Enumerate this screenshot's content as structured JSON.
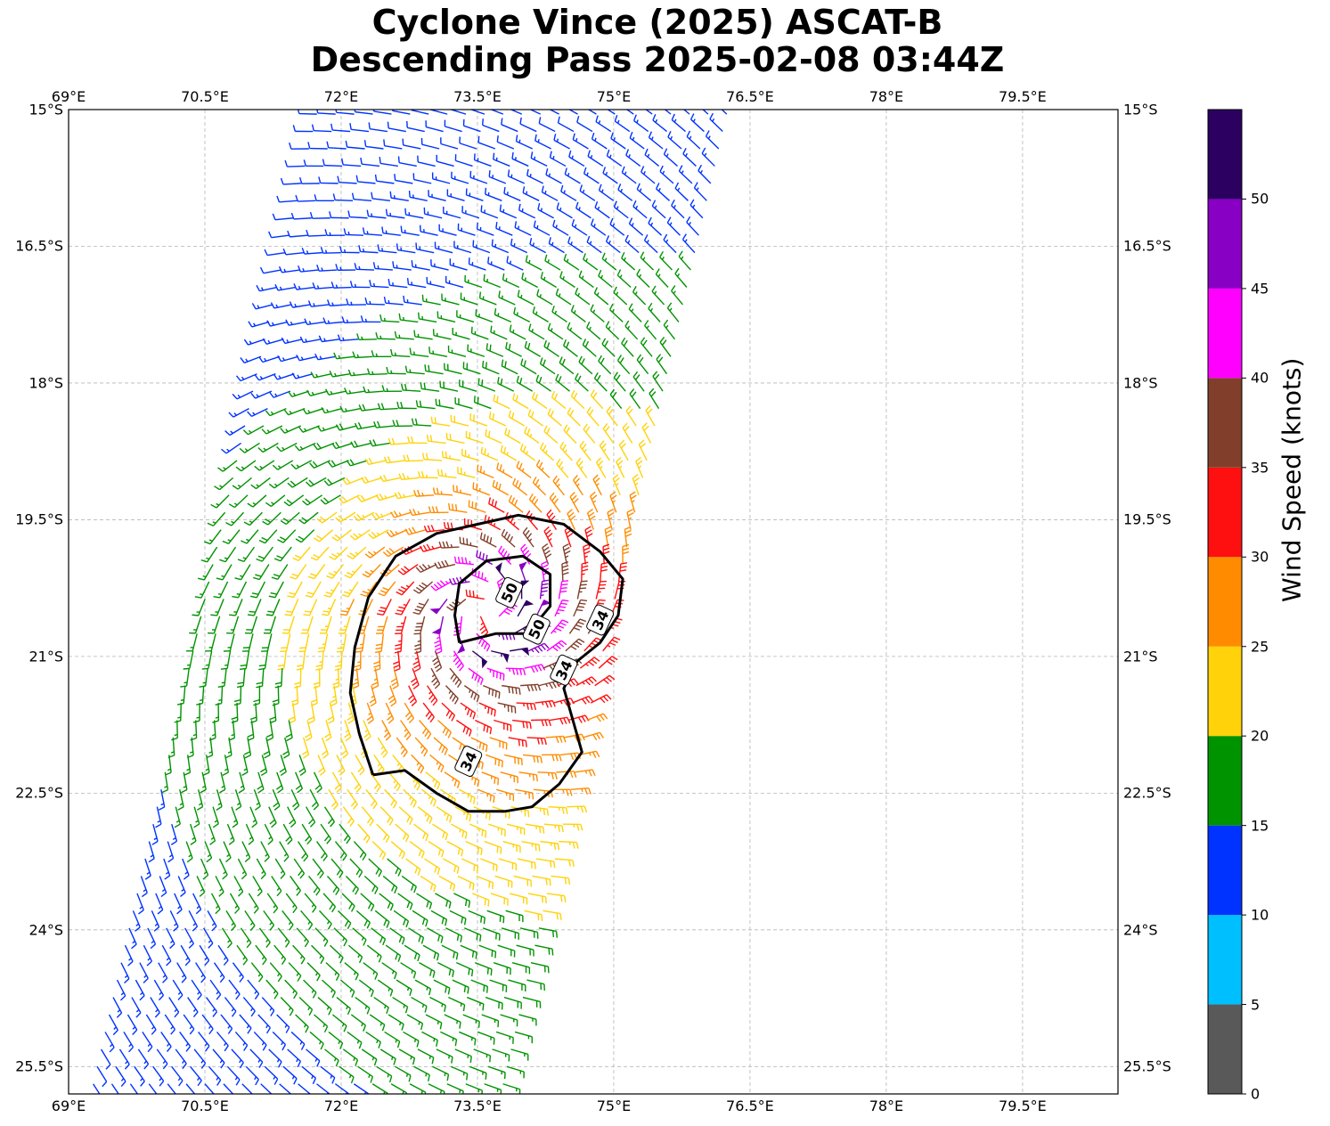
{
  "title": {
    "line1": "Cyclone Vince (2025) ASCAT-B",
    "line2": "Descending Pass 2025-02-08 03:44Z"
  },
  "map": {
    "lon_range": [
      69,
      80.55
    ],
    "lat_range": [
      -25.8,
      -15
    ],
    "lon_ticks": [
      {
        "value": 69,
        "label": "69°E"
      },
      {
        "value": 70.5,
        "label": "70.5°E"
      },
      {
        "value": 72,
        "label": "72°E"
      },
      {
        "value": 73.5,
        "label": "73.5°E"
      },
      {
        "value": 75,
        "label": "75°E"
      },
      {
        "value": 76.5,
        "label": "76.5°E"
      },
      {
        "value": 78,
        "label": "78°E"
      },
      {
        "value": 79.5,
        "label": "79.5°E"
      }
    ],
    "lat_ticks": [
      {
        "value": -15,
        "label": "15°S"
      },
      {
        "value": -16.5,
        "label": "16.5°S"
      },
      {
        "value": -18,
        "label": "18°S"
      },
      {
        "value": -19.5,
        "label": "19.5°S"
      },
      {
        "value": -21,
        "label": "21°S"
      },
      {
        "value": -22.5,
        "label": "22.5°S"
      },
      {
        "value": -24,
        "label": "24°S"
      },
      {
        "value": -25.5,
        "label": "25.5°S"
      }
    ],
    "gridlines": true,
    "storm_center": {
      "lon": 73.6,
      "lat": -20.5
    },
    "swath": {
      "center_track_top": {
        "lon": 74.0,
        "lat": -15.0
      },
      "center_track_bottom": {
        "lon": 71.5,
        "lat": -25.8
      },
      "half_width_deg": 2.35
    },
    "contours": [
      {
        "level": 34,
        "label": "34",
        "points": [
          [
            72.35,
            -22.3
          ],
          [
            72.7,
            -22.25
          ],
          [
            73.05,
            -22.5
          ],
          [
            73.4,
            -22.7
          ],
          [
            73.8,
            -22.7
          ],
          [
            74.1,
            -22.65
          ],
          [
            74.4,
            -22.4
          ],
          [
            74.65,
            -22.05
          ],
          [
            74.55,
            -21.7
          ],
          [
            74.45,
            -21.35
          ],
          [
            74.6,
            -21.05
          ],
          [
            74.85,
            -20.85
          ],
          [
            75.05,
            -20.55
          ],
          [
            75.1,
            -20.15
          ],
          [
            74.85,
            -19.85
          ],
          [
            74.45,
            -19.55
          ],
          [
            73.95,
            -19.45
          ],
          [
            73.5,
            -19.55
          ],
          [
            73.05,
            -19.65
          ],
          [
            72.6,
            -19.9
          ],
          [
            72.3,
            -20.35
          ],
          [
            72.15,
            -20.9
          ],
          [
            72.1,
            -21.4
          ],
          [
            72.2,
            -21.85
          ],
          [
            72.35,
            -22.3
          ]
        ]
      },
      {
        "level": 50,
        "label": "50",
        "points": [
          [
            73.3,
            -20.85
          ],
          [
            73.7,
            -20.75
          ],
          [
            74.05,
            -20.75
          ],
          [
            74.3,
            -20.45
          ],
          [
            74.3,
            -20.1
          ],
          [
            74.0,
            -19.9
          ],
          [
            73.6,
            -19.95
          ],
          [
            73.3,
            -20.2
          ],
          [
            73.25,
            -20.55
          ],
          [
            73.3,
            -20.85
          ]
        ]
      }
    ],
    "contour_labels": [
      {
        "text": "34",
        "lon": 73.4,
        "lat": -22.15
      },
      {
        "text": "34",
        "lon": 74.45,
        "lat": -21.15
      },
      {
        "text": "34",
        "lon": 74.85,
        "lat": -20.6
      },
      {
        "text": "50",
        "lon": 73.85,
        "lat": -20.3
      },
      {
        "text": "50",
        "lon": 74.15,
        "lat": -20.7
      }
    ]
  },
  "colorbar": {
    "label": "Wind Speed (knots)",
    "bins": [
      {
        "min": 0,
        "max": 5,
        "color": "#595959"
      },
      {
        "min": 5,
        "max": 10,
        "color": "#00bfff"
      },
      {
        "min": 10,
        "max": 15,
        "color": "#0033ff"
      },
      {
        "min": 15,
        "max": 20,
        "color": "#009300"
      },
      {
        "min": 20,
        "max": 25,
        "color": "#ffd20a"
      },
      {
        "min": 25,
        "max": 30,
        "color": "#ff8c00"
      },
      {
        "min": 30,
        "max": 35,
        "color": "#ff1010"
      },
      {
        "min": 35,
        "max": 40,
        "color": "#813f2b"
      },
      {
        "min": 40,
        "max": 45,
        "color": "#ff00ff"
      },
      {
        "min": 45,
        "max": 50,
        "color": "#8800c4"
      },
      {
        "min": 50,
        "max": 55,
        "color": "#2c0060"
      }
    ],
    "ticks": [
      "0",
      "5",
      "10",
      "15",
      "20",
      "25",
      "30",
      "35",
      "40",
      "45",
      "50"
    ]
  }
}
